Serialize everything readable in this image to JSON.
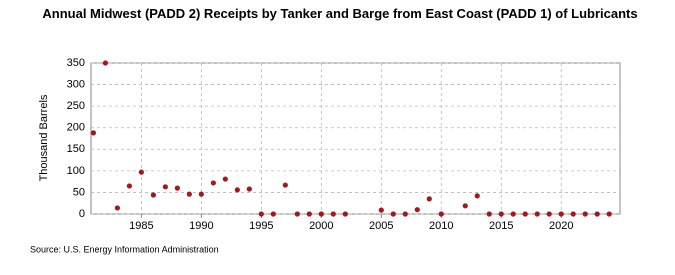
{
  "chart_data": {
    "type": "scatter",
    "title": "Annual Midwest (PADD 2) Receipts by Tanker and Barge from East Coast (PADD 1) of Lubricants",
    "y_label": "Thousand Barrels",
    "source": "Source: U.S. Energy Information Administration",
    "x": [
      1981,
      1982,
      1983,
      1984,
      1985,
      1986,
      1987,
      1988,
      1989,
      1990,
      1991,
      1992,
      1993,
      1994,
      1995,
      1996,
      1997,
      1998,
      1999,
      2000,
      2001,
      2002,
      2005,
      2006,
      2007,
      2008,
      2009,
      2010,
      2012,
      2013,
      2014,
      2015,
      2016,
      2017,
      2018,
      2019,
      2020,
      2021,
      2022,
      2023,
      2024
    ],
    "values": [
      188,
      350,
      14,
      65,
      97,
      44,
      63,
      60,
      46,
      46,
      72,
      81,
      56,
      58,
      0,
      0,
      67,
      0,
      0,
      0,
      0,
      0,
      9,
      0,
      0,
      10,
      35,
      0,
      19,
      42,
      0,
      0,
      0,
      0,
      0,
      0,
      0,
      0,
      0,
      0,
      0
    ],
    "color": "#a0191c",
    "xlim": [
      1980.8,
      2024.9
    ],
    "xticks": [
      1985,
      1990,
      1995,
      2000,
      2005,
      2010,
      2015,
      2020
    ],
    "ylim": [
      0,
      350
    ],
    "yticks": [
      0,
      50,
      100,
      150,
      200,
      250,
      300,
      350
    ],
    "grid": true
  }
}
